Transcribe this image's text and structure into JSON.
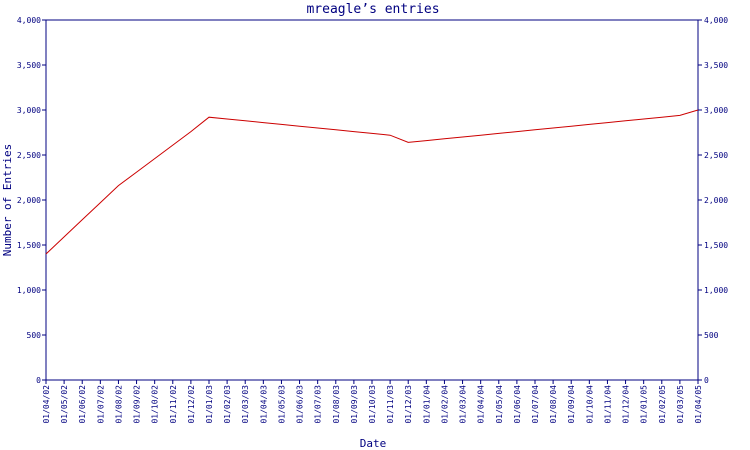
{
  "chart_data": {
    "type": "line",
    "title": "mreagle’s entries",
    "xlabel": "Date",
    "ylabel": "Number of Entries",
    "ylim": [
      0,
      4000
    ],
    "yticks": [
      "0",
      "500",
      "1,000",
      "1,500",
      "2,000",
      "2,500",
      "3,000",
      "3,500",
      "4,000"
    ],
    "ytick_values": [
      0,
      500,
      1000,
      1500,
      2000,
      2500,
      3000,
      3500,
      4000
    ],
    "categories": [
      "01/04/02",
      "01/05/02",
      "01/06/02",
      "01/07/02",
      "01/08/02",
      "01/09/02",
      "01/10/02",
      "01/11/02",
      "01/12/02",
      "01/01/03",
      "01/02/03",
      "01/03/03",
      "01/04/03",
      "01/05/03",
      "01/06/03",
      "01/07/03",
      "01/08/03",
      "01/09/03",
      "01/10/03",
      "01/11/03",
      "01/12/03",
      "01/01/04",
      "01/02/04",
      "01/03/04",
      "01/04/04",
      "01/05/04",
      "01/06/04",
      "01/07/04",
      "01/08/04",
      "01/09/04",
      "01/10/04",
      "01/11/04",
      "01/12/04",
      "01/01/05",
      "01/02/05",
      "01/03/05",
      "01/04/05"
    ],
    "series": [
      {
        "color": "#cc0000",
        "values": [
          1400,
          1590,
          1780,
          1970,
          2160,
          2310,
          2460,
          2610,
          2760,
          2920,
          2900,
          2880,
          2860,
          2840,
          2820,
          2800,
          2780,
          2760,
          2740,
          2720,
          2640,
          2660,
          2680,
          2700,
          2720,
          2740,
          2760,
          2780,
          2800,
          2820,
          2840,
          2860,
          2880,
          2900,
          2920,
          2940,
          3000
        ]
      }
    ],
    "grid": false,
    "axis_color": "#000080"
  }
}
